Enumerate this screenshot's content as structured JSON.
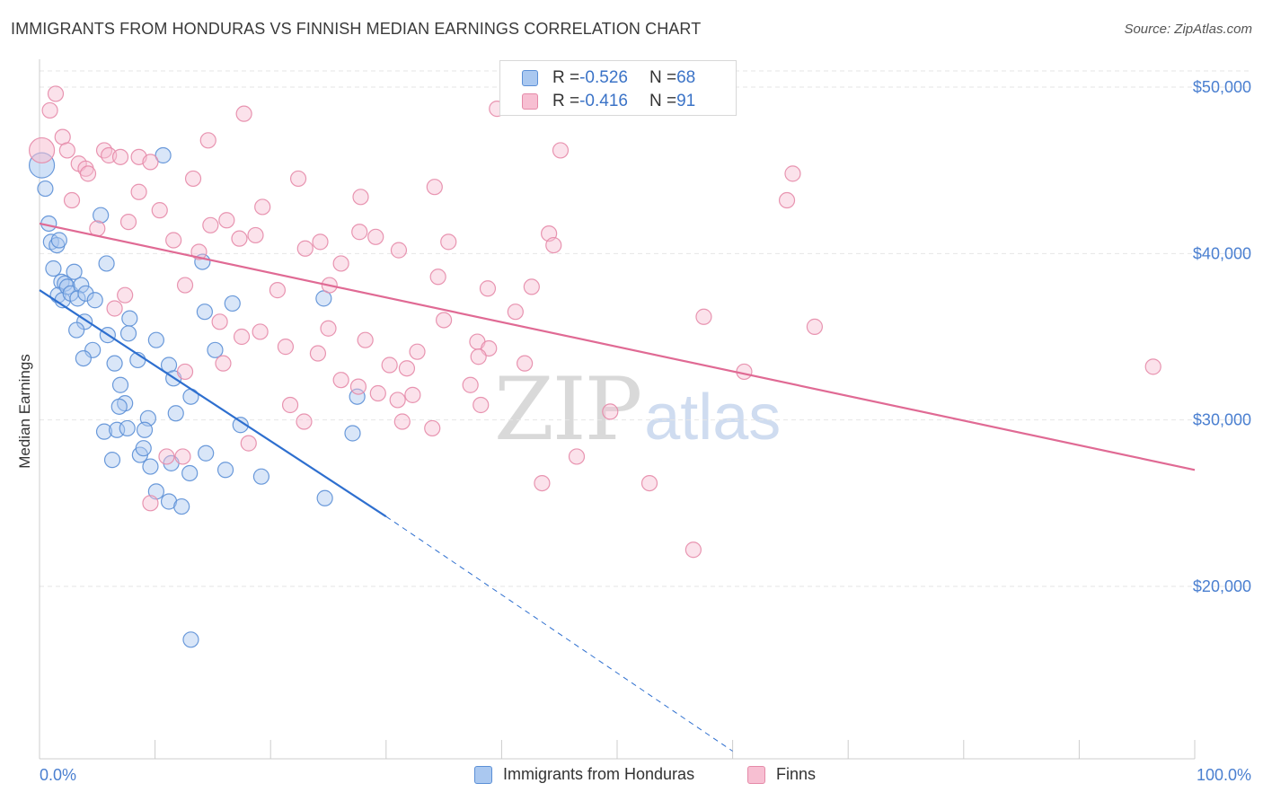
{
  "title": "IMMIGRANTS FROM HONDURAS VS FINNISH MEDIAN EARNINGS CORRELATION CHART",
  "source": "Source: ZipAtlas.com",
  "watermark": {
    "zip": "ZIP",
    "atlas": "atlas"
  },
  "legend": {
    "series": [
      {
        "r_label": "R = ",
        "r_value": "-0.526",
        "n_label": "N = ",
        "n_value": "68"
      },
      {
        "r_label": "R = ",
        "r_value": "-0.416",
        "n_label": "N = ",
        "n_value": "91"
      }
    ]
  },
  "colors": {
    "honduras_fill": "#aac8f0",
    "honduras_stroke": "#5b8fd6",
    "honduras_line": "#2e6fcf",
    "finns_fill": "#f7bfd2",
    "finns_stroke": "#e58aa8",
    "finns_line": "#e06a94",
    "grid": "#e6e6e6",
    "tick_text": "#4a7fd0"
  },
  "chart_data": {
    "type": "scatter",
    "title": "IMMIGRANTS FROM HONDURAS VS FINNISH MEDIAN EARNINGS CORRELATION CHART",
    "xlabel": "",
    "ylabel": "Median Earnings",
    "xlim": [
      0,
      100
    ],
    "ylim": [
      10000,
      52000
    ],
    "x_tick_labels": [
      "0.0%",
      "100.0%"
    ],
    "y_ticks": [
      {
        "value": 20000,
        "label": "$20,000"
      },
      {
        "value": 30000,
        "label": "$30,000"
      },
      {
        "value": 40000,
        "label": "$40,000"
      },
      {
        "value": 50000,
        "label": "$50,000"
      }
    ],
    "grid": true,
    "legend_placement": "bottom-center",
    "series": [
      {
        "name": "Immigrants from Honduras",
        "trend": {
          "x": [
            0,
            30
          ],
          "y": [
            37800,
            24200
          ],
          "extended_to": [
            60,
            10100
          ]
        },
        "points": [
          {
            "x": 0.2,
            "y": 45300,
            "big": true
          },
          {
            "x": 0.5,
            "y": 43900
          },
          {
            "x": 0.8,
            "y": 41800
          },
          {
            "x": 1.0,
            "y": 40700
          },
          {
            "x": 1.5,
            "y": 40500
          },
          {
            "x": 1.7,
            "y": 40800
          },
          {
            "x": 1.2,
            "y": 39100
          },
          {
            "x": 1.9,
            "y": 38300
          },
          {
            "x": 2.2,
            "y": 38200
          },
          {
            "x": 1.6,
            "y": 37500
          },
          {
            "x": 2.0,
            "y": 37200
          },
          {
            "x": 2.4,
            "y": 38000
          },
          {
            "x": 3.0,
            "y": 38900
          },
          {
            "x": 2.7,
            "y": 37600
          },
          {
            "x": 3.6,
            "y": 38100
          },
          {
            "x": 3.3,
            "y": 37300
          },
          {
            "x": 4.0,
            "y": 37600
          },
          {
            "x": 4.8,
            "y": 37200
          },
          {
            "x": 5.8,
            "y": 39400
          },
          {
            "x": 5.3,
            "y": 42300
          },
          {
            "x": 3.9,
            "y": 35900
          },
          {
            "x": 3.2,
            "y": 35400
          },
          {
            "x": 4.6,
            "y": 34200
          },
          {
            "x": 3.8,
            "y": 33700
          },
          {
            "x": 5.9,
            "y": 35100
          },
          {
            "x": 7.8,
            "y": 36100
          },
          {
            "x": 7.7,
            "y": 35200
          },
          {
            "x": 6.5,
            "y": 33400
          },
          {
            "x": 8.5,
            "y": 33600
          },
          {
            "x": 10.1,
            "y": 34800
          },
          {
            "x": 11.2,
            "y": 33300
          },
          {
            "x": 14.3,
            "y": 36500
          },
          {
            "x": 15.2,
            "y": 34200
          },
          {
            "x": 16.7,
            "y": 37000
          },
          {
            "x": 24.6,
            "y": 37300
          },
          {
            "x": 10.7,
            "y": 45900
          },
          {
            "x": 14.1,
            "y": 39500
          },
          {
            "x": 7.0,
            "y": 32100
          },
          {
            "x": 7.4,
            "y": 31000
          },
          {
            "x": 6.9,
            "y": 30800
          },
          {
            "x": 11.6,
            "y": 32500
          },
          {
            "x": 13.1,
            "y": 31400
          },
          {
            "x": 11.8,
            "y": 30400
          },
          {
            "x": 9.4,
            "y": 30100
          },
          {
            "x": 5.6,
            "y": 29300
          },
          {
            "x": 6.7,
            "y": 29400
          },
          {
            "x": 7.6,
            "y": 29500
          },
          {
            "x": 9.1,
            "y": 29400
          },
          {
            "x": 6.3,
            "y": 27600
          },
          {
            "x": 8.7,
            "y": 27900
          },
          {
            "x": 9.0,
            "y": 28300
          },
          {
            "x": 9.6,
            "y": 27200
          },
          {
            "x": 11.4,
            "y": 27400
          },
          {
            "x": 14.4,
            "y": 28000
          },
          {
            "x": 13.0,
            "y": 26800
          },
          {
            "x": 16.1,
            "y": 27000
          },
          {
            "x": 17.4,
            "y": 29700
          },
          {
            "x": 19.2,
            "y": 26600
          },
          {
            "x": 27.5,
            "y": 31400
          },
          {
            "x": 27.1,
            "y": 29200
          },
          {
            "x": 10.1,
            "y": 25700
          },
          {
            "x": 11.2,
            "y": 25100
          },
          {
            "x": 12.3,
            "y": 24800
          },
          {
            "x": 24.7,
            "y": 25300
          },
          {
            "x": 13.1,
            "y": 16800
          }
        ]
      },
      {
        "name": "Finns",
        "trend": {
          "x": [
            0,
            100
          ],
          "y": [
            41800,
            27000
          ]
        },
        "points": [
          {
            "x": 0.2,
            "y": 46200,
            "big": true
          },
          {
            "x": 1.4,
            "y": 49600
          },
          {
            "x": 0.9,
            "y": 48600
          },
          {
            "x": 2.0,
            "y": 47000
          },
          {
            "x": 2.4,
            "y": 46200
          },
          {
            "x": 5.6,
            "y": 46200
          },
          {
            "x": 6.0,
            "y": 45900
          },
          {
            "x": 7.0,
            "y": 45800
          },
          {
            "x": 8.6,
            "y": 45800
          },
          {
            "x": 9.6,
            "y": 45500
          },
          {
            "x": 3.4,
            "y": 45400
          },
          {
            "x": 4.0,
            "y": 45100
          },
          {
            "x": 4.2,
            "y": 44800
          },
          {
            "x": 14.6,
            "y": 46800
          },
          {
            "x": 17.7,
            "y": 48400
          },
          {
            "x": 39.6,
            "y": 48700
          },
          {
            "x": 45.1,
            "y": 46200
          },
          {
            "x": 13.3,
            "y": 44500
          },
          {
            "x": 22.4,
            "y": 44500
          },
          {
            "x": 27.8,
            "y": 43400
          },
          {
            "x": 34.2,
            "y": 44000
          },
          {
            "x": 64.7,
            "y": 43200
          },
          {
            "x": 65.2,
            "y": 44800
          },
          {
            "x": 2.8,
            "y": 43200
          },
          {
            "x": 8.6,
            "y": 43700
          },
          {
            "x": 10.4,
            "y": 42600
          },
          {
            "x": 7.7,
            "y": 41900
          },
          {
            "x": 14.8,
            "y": 41700
          },
          {
            "x": 16.2,
            "y": 42000
          },
          {
            "x": 19.3,
            "y": 42800
          },
          {
            "x": 5.0,
            "y": 41500
          },
          {
            "x": 11.6,
            "y": 40800
          },
          {
            "x": 17.3,
            "y": 40900
          },
          {
            "x": 18.7,
            "y": 41100
          },
          {
            "x": 23.0,
            "y": 40300
          },
          {
            "x": 24.3,
            "y": 40700
          },
          {
            "x": 27.7,
            "y": 41300
          },
          {
            "x": 29.1,
            "y": 41000
          },
          {
            "x": 31.1,
            "y": 40200
          },
          {
            "x": 35.4,
            "y": 40700
          },
          {
            "x": 44.1,
            "y": 41200
          },
          {
            "x": 44.5,
            "y": 40500
          },
          {
            "x": 13.8,
            "y": 40100
          },
          {
            "x": 26.1,
            "y": 39400
          },
          {
            "x": 34.5,
            "y": 38600
          },
          {
            "x": 38.8,
            "y": 37900
          },
          {
            "x": 42.6,
            "y": 38000
          },
          {
            "x": 12.6,
            "y": 38100
          },
          {
            "x": 20.6,
            "y": 37800
          },
          {
            "x": 25.1,
            "y": 38100
          },
          {
            "x": 7.4,
            "y": 37500
          },
          {
            "x": 6.5,
            "y": 36700
          },
          {
            "x": 15.6,
            "y": 35900
          },
          {
            "x": 35.0,
            "y": 36000
          },
          {
            "x": 41.2,
            "y": 36500
          },
          {
            "x": 57.5,
            "y": 36200
          },
          {
            "x": 67.1,
            "y": 35600
          },
          {
            "x": 17.5,
            "y": 35000
          },
          {
            "x": 19.1,
            "y": 35300
          },
          {
            "x": 25.0,
            "y": 35500
          },
          {
            "x": 21.3,
            "y": 34400
          },
          {
            "x": 24.1,
            "y": 34000
          },
          {
            "x": 28.2,
            "y": 34800
          },
          {
            "x": 32.7,
            "y": 34100
          },
          {
            "x": 37.9,
            "y": 34700
          },
          {
            "x": 38.9,
            "y": 34300
          },
          {
            "x": 38.0,
            "y": 33800
          },
          {
            "x": 15.9,
            "y": 33400
          },
          {
            "x": 30.3,
            "y": 33300
          },
          {
            "x": 31.8,
            "y": 33100
          },
          {
            "x": 42.0,
            "y": 33400
          },
          {
            "x": 12.6,
            "y": 32900
          },
          {
            "x": 26.1,
            "y": 32400
          },
          {
            "x": 27.6,
            "y": 32000
          },
          {
            "x": 37.3,
            "y": 32100
          },
          {
            "x": 29.3,
            "y": 31600
          },
          {
            "x": 32.3,
            "y": 31500
          },
          {
            "x": 61.0,
            "y": 32900
          },
          {
            "x": 96.4,
            "y": 33200
          },
          {
            "x": 21.7,
            "y": 30900
          },
          {
            "x": 31.0,
            "y": 31200
          },
          {
            "x": 38.2,
            "y": 30900
          },
          {
            "x": 49.4,
            "y": 30500
          },
          {
            "x": 22.9,
            "y": 29900
          },
          {
            "x": 31.4,
            "y": 29900
          },
          {
            "x": 34.0,
            "y": 29500
          },
          {
            "x": 18.1,
            "y": 28600
          },
          {
            "x": 11.0,
            "y": 27800
          },
          {
            "x": 12.4,
            "y": 27800
          },
          {
            "x": 46.5,
            "y": 27800
          },
          {
            "x": 43.5,
            "y": 26200
          },
          {
            "x": 52.8,
            "y": 26200
          },
          {
            "x": 9.6,
            "y": 25000
          },
          {
            "x": 56.6,
            "y": 22200
          }
        ]
      }
    ]
  }
}
